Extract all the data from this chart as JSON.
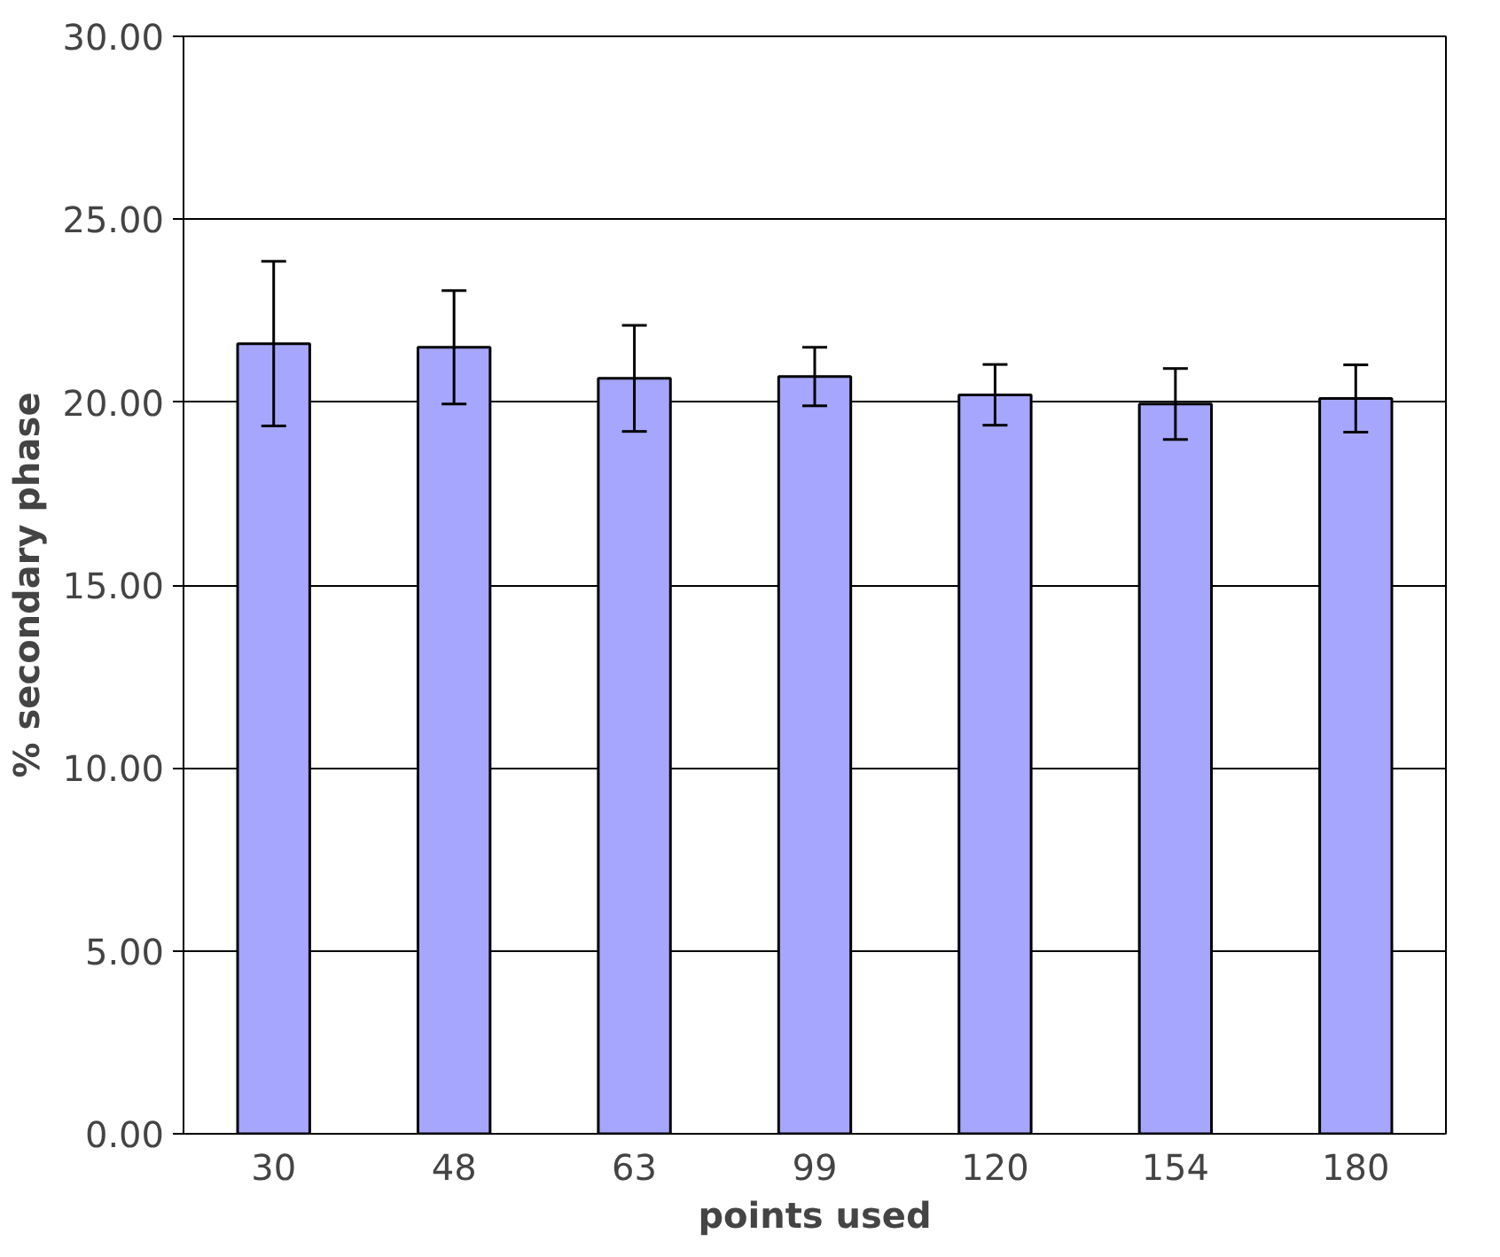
{
  "chart_data": {
    "type": "bar",
    "xlabel": "points used",
    "ylabel": "% secondary phase",
    "categories": [
      "30",
      "48",
      "63",
      "99",
      "120",
      "154",
      "180"
    ],
    "values": [
      21.6,
      21.5,
      20.65,
      20.7,
      20.2,
      19.95,
      20.1
    ],
    "errors": [
      2.25,
      1.55,
      1.45,
      0.8,
      0.83,
      0.97,
      0.92
    ],
    "color": "#a6a6ff",
    "ylim": [
      0,
      30
    ],
    "yticks": [
      {
        "value": 0,
        "label": "0.00"
      },
      {
        "value": 5,
        "label": "5.00"
      },
      {
        "value": 10,
        "label": "10.00"
      },
      {
        "value": 15,
        "label": "15.00"
      },
      {
        "value": 20,
        "label": "20.00"
      },
      {
        "value": 25,
        "label": "25.00"
      },
      {
        "value": 30,
        "label": "30.00"
      }
    ],
    "grid": "y"
  }
}
